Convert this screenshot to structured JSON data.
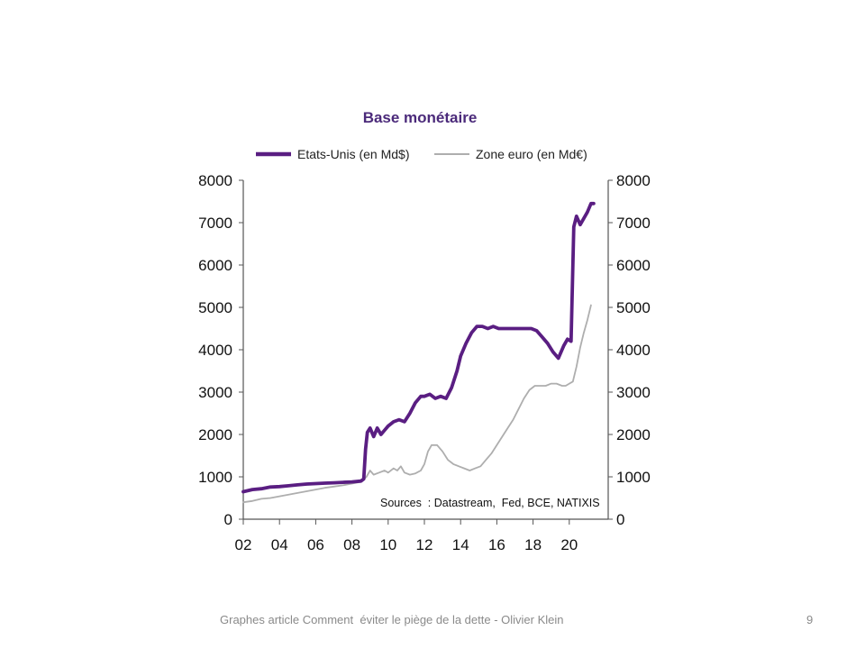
{
  "footer": {
    "caption": "Graphes article Comment  éviter le piège de la dette - Olivier Klein",
    "page_number": "9"
  },
  "chart_data": {
    "type": "line",
    "title": "Base monétaire",
    "source_note": "Sources  : Datastream,  Fed, BCE, NATIXIS",
    "legend_position": "top",
    "grid": false,
    "x_ticks": [
      "02",
      "04",
      "06",
      "08",
      "10",
      "12",
      "14",
      "16",
      "18",
      "20"
    ],
    "x_tick_values": [
      2002,
      2004,
      2006,
      2008,
      2010,
      2012,
      2014,
      2016,
      2018,
      2020
    ],
    "xlim": [
      2002,
      2022
    ],
    "y_ticks": [
      "0",
      "1000",
      "2000",
      "3000",
      "4000",
      "5000",
      "6000",
      "7000",
      "8000"
    ],
    "ylim": [
      0,
      8000
    ],
    "y2_ticks": [
      "0",
      "1000",
      "2000",
      "3000",
      "4000",
      "5000",
      "6000",
      "7000",
      "8000"
    ],
    "y2lim": [
      0,
      8000
    ],
    "series": [
      {
        "name": "Etats-Unis (en Md$)",
        "color": "#5a1e82",
        "width": "thick",
        "points": [
          [
            2002.0,
            650
          ],
          [
            2002.5,
            700
          ],
          [
            2003.0,
            720
          ],
          [
            2003.5,
            760
          ],
          [
            2004.0,
            770
          ],
          [
            2004.5,
            790
          ],
          [
            2005.0,
            810
          ],
          [
            2005.5,
            830
          ],
          [
            2006.0,
            840
          ],
          [
            2006.5,
            850
          ],
          [
            2007.0,
            860
          ],
          [
            2007.5,
            870
          ],
          [
            2008.0,
            880
          ],
          [
            2008.5,
            900
          ],
          [
            2008.65,
            950
          ],
          [
            2008.75,
            1650
          ],
          [
            2008.85,
            2050
          ],
          [
            2009.0,
            2150
          ],
          [
            2009.2,
            1950
          ],
          [
            2009.4,
            2150
          ],
          [
            2009.6,
            2000
          ],
          [
            2009.8,
            2100
          ],
          [
            2010.0,
            2200
          ],
          [
            2010.3,
            2300
          ],
          [
            2010.6,
            2350
          ],
          [
            2010.9,
            2300
          ],
          [
            2011.2,
            2500
          ],
          [
            2011.5,
            2750
          ],
          [
            2011.8,
            2900
          ],
          [
            2012.0,
            2900
          ],
          [
            2012.3,
            2950
          ],
          [
            2012.6,
            2850
          ],
          [
            2012.9,
            2900
          ],
          [
            2013.2,
            2850
          ],
          [
            2013.5,
            3100
          ],
          [
            2013.8,
            3500
          ],
          [
            2014.0,
            3850
          ],
          [
            2014.3,
            4150
          ],
          [
            2014.6,
            4400
          ],
          [
            2014.9,
            4550
          ],
          [
            2015.2,
            4550
          ],
          [
            2015.5,
            4500
          ],
          [
            2015.8,
            4550
          ],
          [
            2016.1,
            4500
          ],
          [
            2016.4,
            4500
          ],
          [
            2016.7,
            4500
          ],
          [
            2017.0,
            4500
          ],
          [
            2017.3,
            4500
          ],
          [
            2017.6,
            4500
          ],
          [
            2017.9,
            4500
          ],
          [
            2018.2,
            4450
          ],
          [
            2018.5,
            4300
          ],
          [
            2018.8,
            4150
          ],
          [
            2019.1,
            3950
          ],
          [
            2019.4,
            3800
          ],
          [
            2019.7,
            4100
          ],
          [
            2019.9,
            4250
          ],
          [
            2020.1,
            4200
          ],
          [
            2020.25,
            6900
          ],
          [
            2020.4,
            7150
          ],
          [
            2020.6,
            6950
          ],
          [
            2020.8,
            7100
          ],
          [
            2021.0,
            7250
          ],
          [
            2021.2,
            7450
          ],
          [
            2021.35,
            7450
          ]
        ]
      },
      {
        "name": "Zone euro (en Md€)",
        "color": "#aeaeae",
        "width": "thin",
        "points": [
          [
            2002.0,
            400
          ],
          [
            2002.5,
            430
          ],
          [
            2003.0,
            480
          ],
          [
            2003.5,
            500
          ],
          [
            2004.0,
            540
          ],
          [
            2004.5,
            580
          ],
          [
            2005.0,
            620
          ],
          [
            2005.5,
            660
          ],
          [
            2006.0,
            700
          ],
          [
            2006.5,
            740
          ],
          [
            2007.0,
            770
          ],
          [
            2007.5,
            800
          ],
          [
            2008.0,
            840
          ],
          [
            2008.5,
            880
          ],
          [
            2008.8,
            1000
          ],
          [
            2009.0,
            1150
          ],
          [
            2009.2,
            1050
          ],
          [
            2009.5,
            1100
          ],
          [
            2009.8,
            1150
          ],
          [
            2010.0,
            1100
          ],
          [
            2010.3,
            1200
          ],
          [
            2010.5,
            1150
          ],
          [
            2010.7,
            1250
          ],
          [
            2010.9,
            1100
          ],
          [
            2011.2,
            1050
          ],
          [
            2011.5,
            1080
          ],
          [
            2011.8,
            1150
          ],
          [
            2012.0,
            1300
          ],
          [
            2012.2,
            1600
          ],
          [
            2012.4,
            1750
          ],
          [
            2012.7,
            1750
          ],
          [
            2013.0,
            1600
          ],
          [
            2013.3,
            1400
          ],
          [
            2013.6,
            1300
          ],
          [
            2013.9,
            1250
          ],
          [
            2014.2,
            1200
          ],
          [
            2014.5,
            1150
          ],
          [
            2014.8,
            1200
          ],
          [
            2015.1,
            1250
          ],
          [
            2015.4,
            1400
          ],
          [
            2015.7,
            1550
          ],
          [
            2016.0,
            1750
          ],
          [
            2016.3,
            1950
          ],
          [
            2016.6,
            2150
          ],
          [
            2016.9,
            2350
          ],
          [
            2017.2,
            2600
          ],
          [
            2017.5,
            2850
          ],
          [
            2017.8,
            3050
          ],
          [
            2018.1,
            3150
          ],
          [
            2018.4,
            3150
          ],
          [
            2018.7,
            3150
          ],
          [
            2019.0,
            3200
          ],
          [
            2019.3,
            3200
          ],
          [
            2019.6,
            3150
          ],
          [
            2019.8,
            3150
          ],
          [
            2020.0,
            3200
          ],
          [
            2020.2,
            3250
          ],
          [
            2020.4,
            3600
          ],
          [
            2020.6,
            4050
          ],
          [
            2020.8,
            4400
          ],
          [
            2021.0,
            4700
          ],
          [
            2021.2,
            5050
          ]
        ]
      }
    ]
  }
}
